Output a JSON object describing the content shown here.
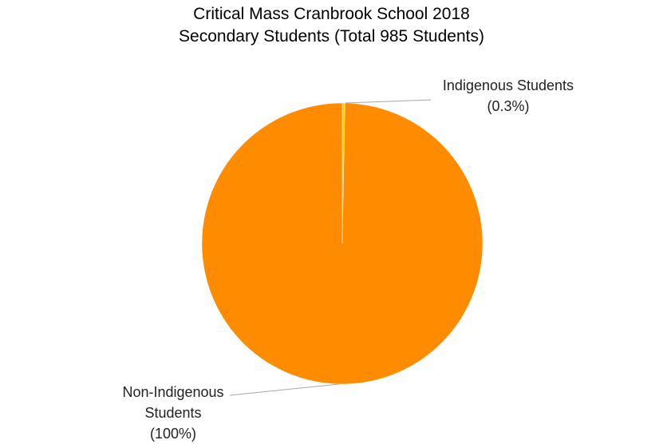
{
  "chart_data": {
    "type": "pie",
    "title": "Critical Mass Cranbrook School 2018",
    "subtitle": "Secondary Students (Total 985 Students)",
    "categories": [
      "Indigenous Students",
      "Non-Indigenous Students"
    ],
    "values": [
      0.3,
      99.7
    ],
    "value_labels": [
      "(0.3%)",
      "(100%)"
    ],
    "colors": [
      "#ffd700",
      "#ff8c00"
    ]
  }
}
